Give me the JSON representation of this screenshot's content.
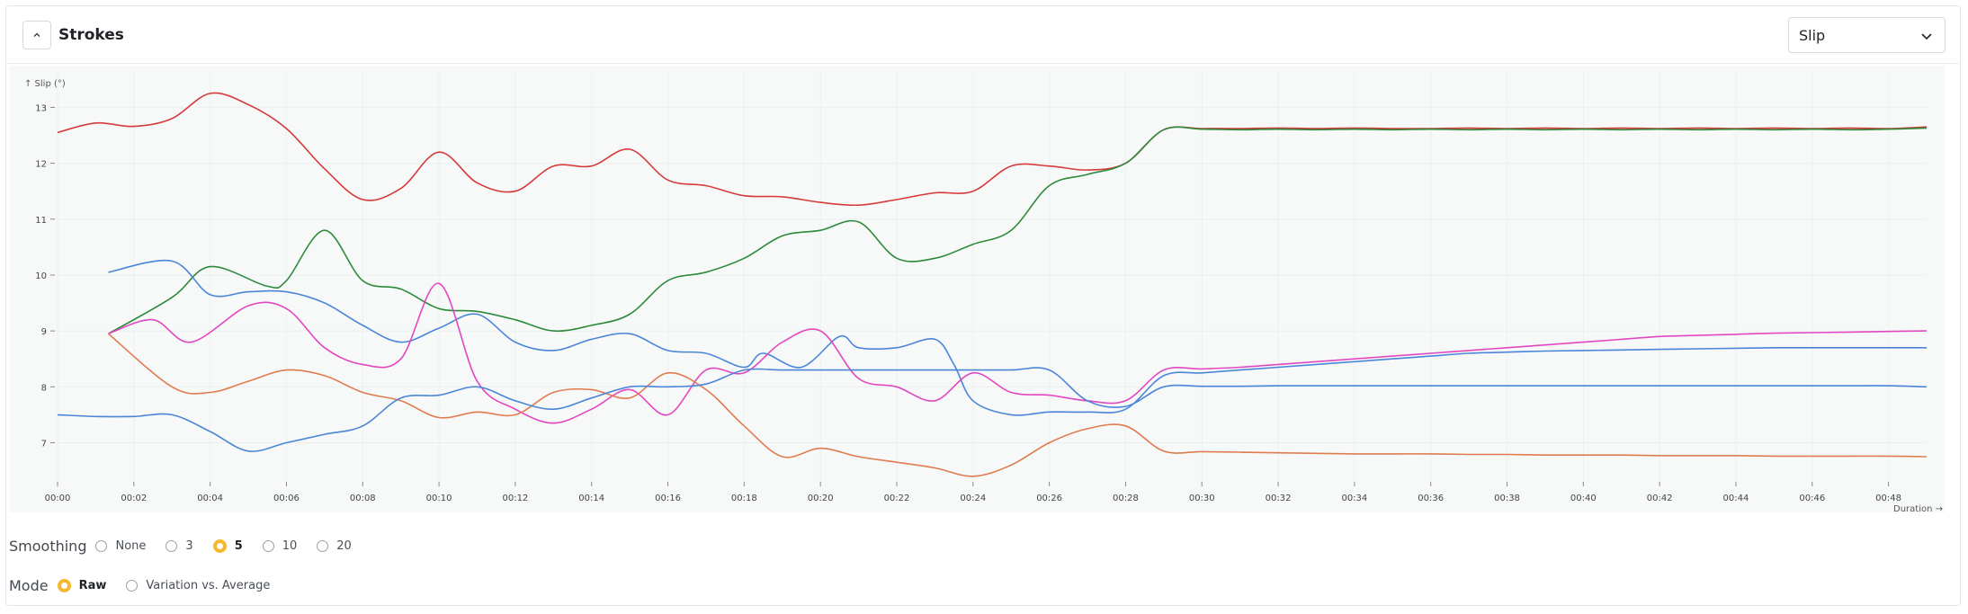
{
  "header": {
    "title": "Strokes",
    "metric_select": "Slip"
  },
  "controls": {
    "smoothing": {
      "label": "Smoothing",
      "options": [
        "None",
        "3",
        "5",
        "10",
        "20"
      ],
      "selected": "5"
    },
    "mode": {
      "label": "Mode",
      "options": [
        "Raw",
        "Variation vs. Average"
      ],
      "selected": "Raw"
    }
  },
  "chart_data": {
    "type": "line",
    "ylabel": "↑ Slip (°)",
    "xlabel": "Duration →",
    "x_unit": "seconds",
    "xlim": [
      0,
      2940
    ],
    "ylim": [
      6.3,
      13.65
    ],
    "yticks": [
      7,
      8,
      9,
      10,
      11,
      12,
      13
    ],
    "xtick_labels": [
      "00:00",
      "00:02",
      "00:04",
      "00:06",
      "00:08",
      "00:10",
      "00:12",
      "00:14",
      "00:16",
      "00:18",
      "00:20",
      "00:22",
      "00:24",
      "00:26",
      "00:28",
      "00:30",
      "00:32",
      "00:34",
      "00:36",
      "00:38",
      "00:40",
      "00:42",
      "00:44",
      "00:46",
      "00:48"
    ],
    "grid": true,
    "series": [
      {
        "color": "#d63a3a",
        "points": [
          [
            0,
            12.55
          ],
          [
            60,
            12.72
          ],
          [
            120,
            12.66
          ],
          [
            180,
            12.8
          ],
          [
            240,
            13.25
          ],
          [
            300,
            13.05
          ],
          [
            360,
            12.62
          ],
          [
            420,
            11.9
          ],
          [
            480,
            11.35
          ],
          [
            540,
            11.55
          ],
          [
            600,
            12.2
          ],
          [
            660,
            11.65
          ],
          [
            720,
            11.5
          ],
          [
            780,
            11.95
          ],
          [
            840,
            11.95
          ],
          [
            900,
            12.25
          ],
          [
            960,
            11.7
          ],
          [
            1020,
            11.6
          ],
          [
            1080,
            11.42
          ],
          [
            1140,
            11.4
          ],
          [
            1200,
            11.3
          ],
          [
            1260,
            11.25
          ],
          [
            1320,
            11.35
          ],
          [
            1380,
            11.47
          ],
          [
            1440,
            11.5
          ],
          [
            1500,
            11.95
          ],
          [
            1560,
            11.95
          ],
          [
            1620,
            11.88
          ],
          [
            1680,
            12.0
          ],
          [
            1740,
            12.6
          ],
          [
            1800,
            12.62
          ],
          [
            1860,
            12.62
          ],
          [
            1920,
            12.63
          ],
          [
            1980,
            12.62
          ],
          [
            2040,
            12.63
          ],
          [
            2100,
            12.62
          ],
          [
            2160,
            12.62
          ],
          [
            2220,
            12.63
          ],
          [
            2280,
            12.62
          ],
          [
            2340,
            12.63
          ],
          [
            2400,
            12.62
          ],
          [
            2460,
            12.63
          ],
          [
            2520,
            12.62
          ],
          [
            2580,
            12.63
          ],
          [
            2640,
            12.62
          ],
          [
            2700,
            12.63
          ],
          [
            2760,
            12.62
          ],
          [
            2820,
            12.63
          ],
          [
            2880,
            12.62
          ],
          [
            2940,
            12.65
          ]
        ]
      },
      {
        "color": "#2d8a3a",
        "points": [
          [
            80,
            8.95
          ],
          [
            180,
            9.6
          ],
          [
            240,
            10.15
          ],
          [
            330,
            9.8
          ],
          [
            360,
            9.9
          ],
          [
            420,
            10.8
          ],
          [
            480,
            9.9
          ],
          [
            540,
            9.75
          ],
          [
            600,
            9.4
          ],
          [
            660,
            9.35
          ],
          [
            720,
            9.2
          ],
          [
            780,
            9.0
          ],
          [
            840,
            9.1
          ],
          [
            900,
            9.3
          ],
          [
            960,
            9.9
          ],
          [
            1020,
            10.05
          ],
          [
            1080,
            10.3
          ],
          [
            1140,
            10.7
          ],
          [
            1200,
            10.8
          ],
          [
            1260,
            10.95
          ],
          [
            1320,
            10.3
          ],
          [
            1380,
            10.3
          ],
          [
            1440,
            10.55
          ],
          [
            1500,
            10.8
          ],
          [
            1560,
            11.6
          ],
          [
            1620,
            11.8
          ],
          [
            1680,
            12.0
          ],
          [
            1740,
            12.6
          ],
          [
            1800,
            12.61
          ],
          [
            1860,
            12.6
          ],
          [
            1920,
            12.61
          ],
          [
            1980,
            12.6
          ],
          [
            2040,
            12.61
          ],
          [
            2100,
            12.6
          ],
          [
            2160,
            12.61
          ],
          [
            2220,
            12.6
          ],
          [
            2280,
            12.61
          ],
          [
            2340,
            12.6
          ],
          [
            2400,
            12.61
          ],
          [
            2460,
            12.6
          ],
          [
            2520,
            12.61
          ],
          [
            2580,
            12.6
          ],
          [
            2640,
            12.61
          ],
          [
            2700,
            12.6
          ],
          [
            2760,
            12.61
          ],
          [
            2820,
            12.6
          ],
          [
            2880,
            12.61
          ],
          [
            2940,
            12.63
          ]
        ]
      },
      {
        "color": "#4a86d8",
        "points": [
          [
            80,
            10.05
          ],
          [
            180,
            10.25
          ],
          [
            240,
            9.65
          ],
          [
            300,
            9.7
          ],
          [
            360,
            9.7
          ],
          [
            420,
            9.5
          ],
          [
            480,
            9.1
          ],
          [
            540,
            8.8
          ],
          [
            600,
            9.05
          ],
          [
            660,
            9.3
          ],
          [
            720,
            8.8
          ],
          [
            780,
            8.65
          ],
          [
            840,
            8.85
          ],
          [
            900,
            8.95
          ],
          [
            960,
            8.65
          ],
          [
            1020,
            8.6
          ],
          [
            1080,
            8.35
          ],
          [
            1110,
            8.6
          ],
          [
            1170,
            8.35
          ],
          [
            1230,
            8.9
          ],
          [
            1260,
            8.7
          ],
          [
            1320,
            8.7
          ],
          [
            1380,
            8.85
          ],
          [
            1410,
            8.4
          ],
          [
            1440,
            7.75
          ],
          [
            1500,
            7.5
          ],
          [
            1560,
            7.55
          ],
          [
            1620,
            7.55
          ],
          [
            1680,
            7.6
          ],
          [
            1740,
            8.2
          ],
          [
            1800,
            8.25
          ],
          [
            1860,
            8.3
          ],
          [
            1920,
            8.35
          ],
          [
            1980,
            8.4
          ],
          [
            2040,
            8.45
          ],
          [
            2100,
            8.5
          ],
          [
            2160,
            8.55
          ],
          [
            2220,
            8.6
          ],
          [
            2280,
            8.62
          ],
          [
            2340,
            8.64
          ],
          [
            2400,
            8.65
          ],
          [
            2460,
            8.66
          ],
          [
            2520,
            8.67
          ],
          [
            2580,
            8.68
          ],
          [
            2640,
            8.69
          ],
          [
            2700,
            8.7
          ],
          [
            2760,
            8.7
          ],
          [
            2820,
            8.7
          ],
          [
            2880,
            8.7
          ],
          [
            2940,
            8.7
          ]
        ]
      },
      {
        "color": "#e246c0",
        "points": [
          [
            80,
            8.95
          ],
          [
            150,
            9.2
          ],
          [
            210,
            8.8
          ],
          [
            300,
            9.45
          ],
          [
            360,
            9.4
          ],
          [
            420,
            8.7
          ],
          [
            480,
            8.4
          ],
          [
            540,
            8.5
          ],
          [
            600,
            9.85
          ],
          [
            660,
            8.1
          ],
          [
            720,
            7.6
          ],
          [
            780,
            7.35
          ],
          [
            840,
            7.6
          ],
          [
            900,
            7.95
          ],
          [
            960,
            7.5
          ],
          [
            1020,
            8.3
          ],
          [
            1080,
            8.25
          ],
          [
            1140,
            8.8
          ],
          [
            1200,
            9.0
          ],
          [
            1260,
            8.15
          ],
          [
            1320,
            8.0
          ],
          [
            1380,
            7.75
          ],
          [
            1440,
            8.25
          ],
          [
            1500,
            7.9
          ],
          [
            1560,
            7.85
          ],
          [
            1620,
            7.75
          ],
          [
            1680,
            7.75
          ],
          [
            1740,
            8.3
          ],
          [
            1800,
            8.32
          ],
          [
            1860,
            8.35
          ],
          [
            1920,
            8.4
          ],
          [
            1980,
            8.45
          ],
          [
            2040,
            8.5
          ],
          [
            2100,
            8.55
          ],
          [
            2160,
            8.6
          ],
          [
            2220,
            8.65
          ],
          [
            2280,
            8.7
          ],
          [
            2340,
            8.75
          ],
          [
            2400,
            8.8
          ],
          [
            2460,
            8.85
          ],
          [
            2520,
            8.9
          ],
          [
            2580,
            8.92
          ],
          [
            2640,
            8.94
          ],
          [
            2700,
            8.96
          ],
          [
            2760,
            8.97
          ],
          [
            2820,
            8.98
          ],
          [
            2880,
            8.99
          ],
          [
            2940,
            9.0
          ]
        ]
      },
      {
        "color": "#e07b4e",
        "points": [
          [
            80,
            8.95
          ],
          [
            180,
            8.0
          ],
          [
            240,
            7.9
          ],
          [
            300,
            8.1
          ],
          [
            360,
            8.3
          ],
          [
            420,
            8.2
          ],
          [
            480,
            7.9
          ],
          [
            540,
            7.75
          ],
          [
            600,
            7.45
          ],
          [
            660,
            7.55
          ],
          [
            720,
            7.5
          ],
          [
            780,
            7.9
          ],
          [
            840,
            7.95
          ],
          [
            900,
            7.8
          ],
          [
            960,
            8.25
          ],
          [
            1020,
            7.95
          ],
          [
            1080,
            7.3
          ],
          [
            1140,
            6.75
          ],
          [
            1200,
            6.9
          ],
          [
            1260,
            6.75
          ],
          [
            1320,
            6.65
          ],
          [
            1380,
            6.55
          ],
          [
            1440,
            6.4
          ],
          [
            1500,
            6.6
          ],
          [
            1560,
            7.0
          ],
          [
            1620,
            7.25
          ],
          [
            1680,
            7.3
          ],
          [
            1740,
            6.85
          ],
          [
            1800,
            6.84
          ],
          [
            1860,
            6.83
          ],
          [
            1920,
            6.82
          ],
          [
            1980,
            6.81
          ],
          [
            2040,
            6.8
          ],
          [
            2100,
            6.8
          ],
          [
            2160,
            6.8
          ],
          [
            2220,
            6.79
          ],
          [
            2280,
            6.79
          ],
          [
            2340,
            6.78
          ],
          [
            2400,
            6.78
          ],
          [
            2460,
            6.78
          ],
          [
            2520,
            6.77
          ],
          [
            2580,
            6.77
          ],
          [
            2640,
            6.77
          ],
          [
            2700,
            6.76
          ],
          [
            2760,
            6.76
          ],
          [
            2820,
            6.76
          ],
          [
            2880,
            6.76
          ],
          [
            2940,
            6.75
          ]
        ]
      },
      {
        "color": "#4a86d8",
        "points": [
          [
            0,
            7.5
          ],
          [
            60,
            7.47
          ],
          [
            120,
            7.47
          ],
          [
            180,
            7.5
          ],
          [
            240,
            7.2
          ],
          [
            300,
            6.85
          ],
          [
            360,
            7.0
          ],
          [
            420,
            7.15
          ],
          [
            480,
            7.3
          ],
          [
            540,
            7.8
          ],
          [
            600,
            7.85
          ],
          [
            660,
            8.0
          ],
          [
            720,
            7.75
          ],
          [
            780,
            7.6
          ],
          [
            840,
            7.8
          ],
          [
            900,
            8.0
          ],
          [
            960,
            8.0
          ],
          [
            1020,
            8.05
          ],
          [
            1080,
            8.3
          ],
          [
            1140,
            8.3
          ],
          [
            1200,
            8.3
          ],
          [
            1260,
            8.3
          ],
          [
            1320,
            8.3
          ],
          [
            1380,
            8.3
          ],
          [
            1440,
            8.3
          ],
          [
            1500,
            8.3
          ],
          [
            1560,
            8.3
          ],
          [
            1620,
            7.75
          ],
          [
            1680,
            7.65
          ],
          [
            1740,
            8.0
          ],
          [
            1800,
            8.01
          ],
          [
            1860,
            8.01
          ],
          [
            1920,
            8.02
          ],
          [
            1980,
            8.02
          ],
          [
            2040,
            8.02
          ],
          [
            2100,
            8.02
          ],
          [
            2160,
            8.02
          ],
          [
            2220,
            8.02
          ],
          [
            2280,
            8.02
          ],
          [
            2340,
            8.02
          ],
          [
            2400,
            8.02
          ],
          [
            2460,
            8.02
          ],
          [
            2520,
            8.02
          ],
          [
            2580,
            8.02
          ],
          [
            2640,
            8.02
          ],
          [
            2700,
            8.02
          ],
          [
            2760,
            8.02
          ],
          [
            2820,
            8.02
          ],
          [
            2880,
            8.02
          ],
          [
            2940,
            8.0
          ]
        ]
      }
    ]
  }
}
